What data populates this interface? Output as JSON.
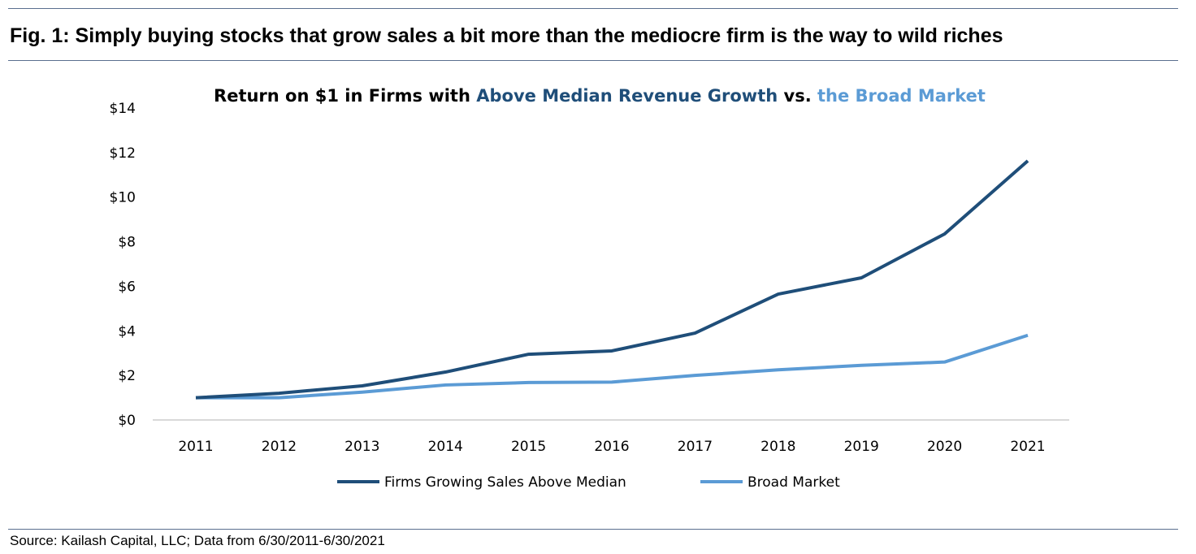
{
  "figure_title": "Fig. 1:  Simply buying stocks that grow sales a bit more than the mediocre firm is the way to wild riches",
  "source": "Source: Kailash Capital, LLC; Data from 6/30/2011-6/30/2021",
  "chart_data": {
    "type": "line",
    "title_parts": [
      {
        "text": "Return on $1 in Firms with ",
        "color": "#000000"
      },
      {
        "text": "Above Median Revenue Growth",
        "color": "#1f4e79"
      },
      {
        "text": " vs. ",
        "color": "#000000"
      },
      {
        "text": "the Broad Market",
        "color": "#5b9bd5"
      }
    ],
    "x": [
      "2011",
      "2012",
      "2013",
      "2014",
      "2015",
      "2016",
      "2017",
      "2018",
      "2019",
      "2020",
      "2021"
    ],
    "ylim": [
      0,
      14
    ],
    "yticks": [
      "$0",
      "$2",
      "$4",
      "$6",
      "$8",
      "$10",
      "$12",
      "$14"
    ],
    "grid": false,
    "legend_position": "bottom",
    "series": [
      {
        "name": "Firms Growing Sales Above Median",
        "color": "#1f4e79",
        "values": [
          1.0,
          1.2,
          1.53,
          2.15,
          2.95,
          3.1,
          3.9,
          5.65,
          6.38,
          8.35,
          11.63
        ]
      },
      {
        "name": "Broad Market",
        "color": "#5b9bd5",
        "values": [
          1.0,
          1.0,
          1.25,
          1.57,
          1.68,
          1.7,
          2.0,
          2.25,
          2.45,
          2.6,
          3.8
        ]
      }
    ]
  }
}
